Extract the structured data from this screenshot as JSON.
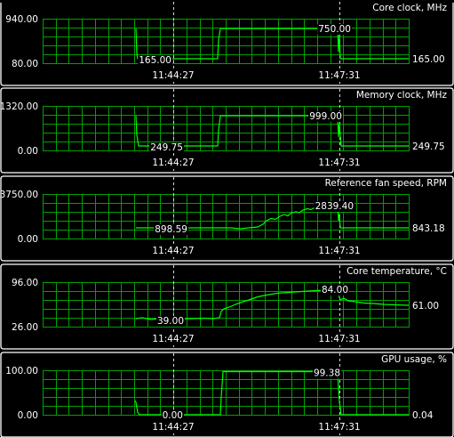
{
  "panels": [
    {
      "title": "Core clock, MHz",
      "y_max_label": "940.00",
      "y_min_label": "80.00",
      "time_labels": [
        "11:44:27",
        "11:47:31"
      ],
      "annotations": [
        "165.00",
        "750.00"
      ],
      "current_value": "165.00"
    },
    {
      "title": "Memory clock, MHz",
      "y_max_label": "1320.00",
      "y_min_label": "0.00",
      "time_labels": [
        "11:44:27",
        "11:47:31"
      ],
      "annotations": [
        "249.75",
        "999.00"
      ],
      "current_value": "249.75"
    },
    {
      "title": "Reference fan speed, RPM",
      "y_max_label": "3750.00",
      "y_min_label": "0.00",
      "time_labels": [
        "11:44:27",
        "11:47:31"
      ],
      "annotations": [
        "898.59",
        "2839.40"
      ],
      "current_value": "843.18"
    },
    {
      "title": "Core temperature, °C",
      "y_max_label": "96.00",
      "y_min_label": "26.00",
      "time_labels": [
        "11:44:27",
        "11:47:31"
      ],
      "annotations": [
        "39.00",
        "84.00"
      ],
      "current_value": "61.00"
    },
    {
      "title": "GPU usage, %",
      "y_max_label": "100.00",
      "y_min_label": "0.00",
      "time_labels": [
        "11:44:27",
        "11:47:31"
      ],
      "annotations": [
        "0.00",
        "99.38"
      ],
      "current_value": "0.04"
    }
  ],
  "colors": {
    "background": "#000000",
    "grid": "#00a000",
    "trace": "#00ff00",
    "text": "#ffffff",
    "separator": "#ffffff"
  }
}
